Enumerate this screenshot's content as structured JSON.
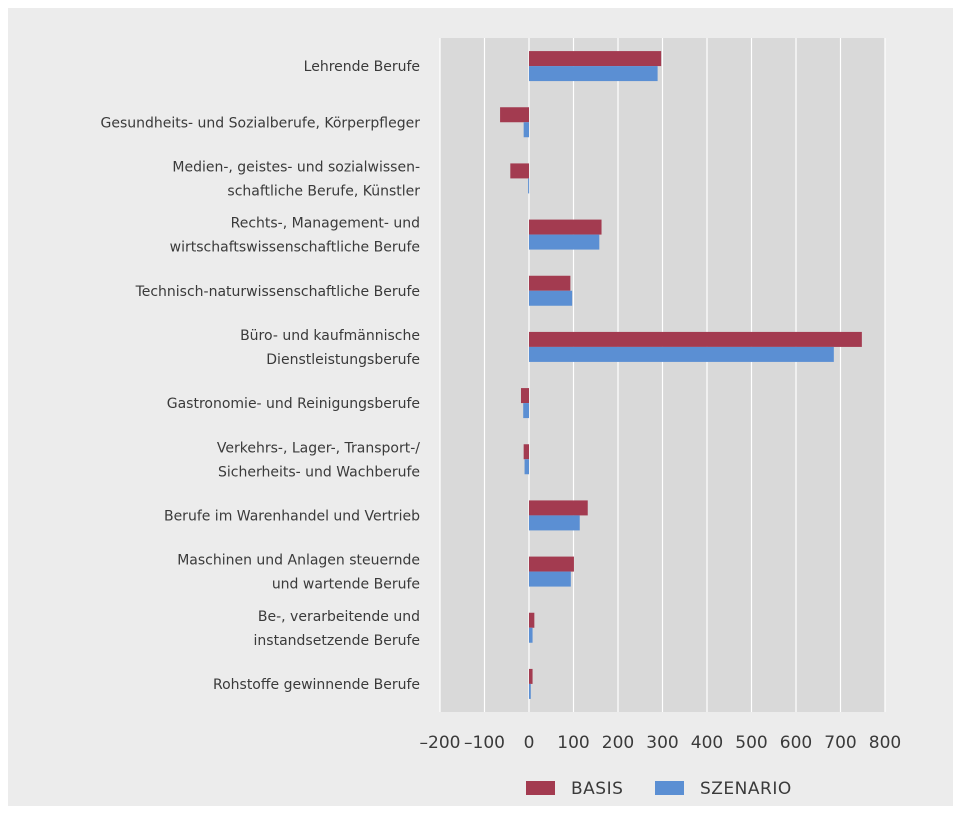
{
  "chart_data": {
    "type": "bar",
    "orientation": "horizontal",
    "categories": [
      "Lehrende Berufe",
      "Gesundheits- und Sozialberufe, Körperpfleger",
      "Medien-, geistes- und sozialwissen-\nschaftliche Berufe, Künstler",
      "Rechts-, Management- und\nwirtschaftswissenschaftliche Berufe",
      "Technisch-naturwissenschaftliche Berufe",
      "Büro- und kaufmännische\nDienstleistungsberufe",
      "Gastronomie- und Reinigungsberufe",
      "Verkehrs-, Lager-, Transport-/\nSicherheits- und Wachberufe",
      "Berufe im Warenhandel und Vertrieb",
      "Maschinen und Anlagen steuernde\nund wartende Berufe",
      "Be-, verarbeitende und\ninstandsetzende Berufe",
      "Rohstoffe gewinnende Berufe"
    ],
    "series": [
      {
        "name": "BASIS",
        "color": "#a33b50",
        "values": [
          297,
          -65,
          -42,
          163,
          93,
          748,
          -18,
          -12,
          132,
          101,
          12,
          8
        ]
      },
      {
        "name": "SZENARIO",
        "color": "#5b8fd3",
        "values": [
          289,
          -12,
          -2,
          158,
          97,
          685,
          -13,
          -10,
          114,
          94,
          8,
          4
        ]
      }
    ],
    "xlim": [
      -200,
      800
    ],
    "xticks": [
      -200,
      -100,
      0,
      100,
      200,
      300,
      400,
      500,
      600,
      700,
      800
    ],
    "xtick_labels": [
      "–200",
      "–100",
      "0",
      "100",
      "200",
      "300",
      "400",
      "500",
      "600",
      "700",
      "800"
    ],
    "grid": true,
    "legend": "bottom"
  }
}
